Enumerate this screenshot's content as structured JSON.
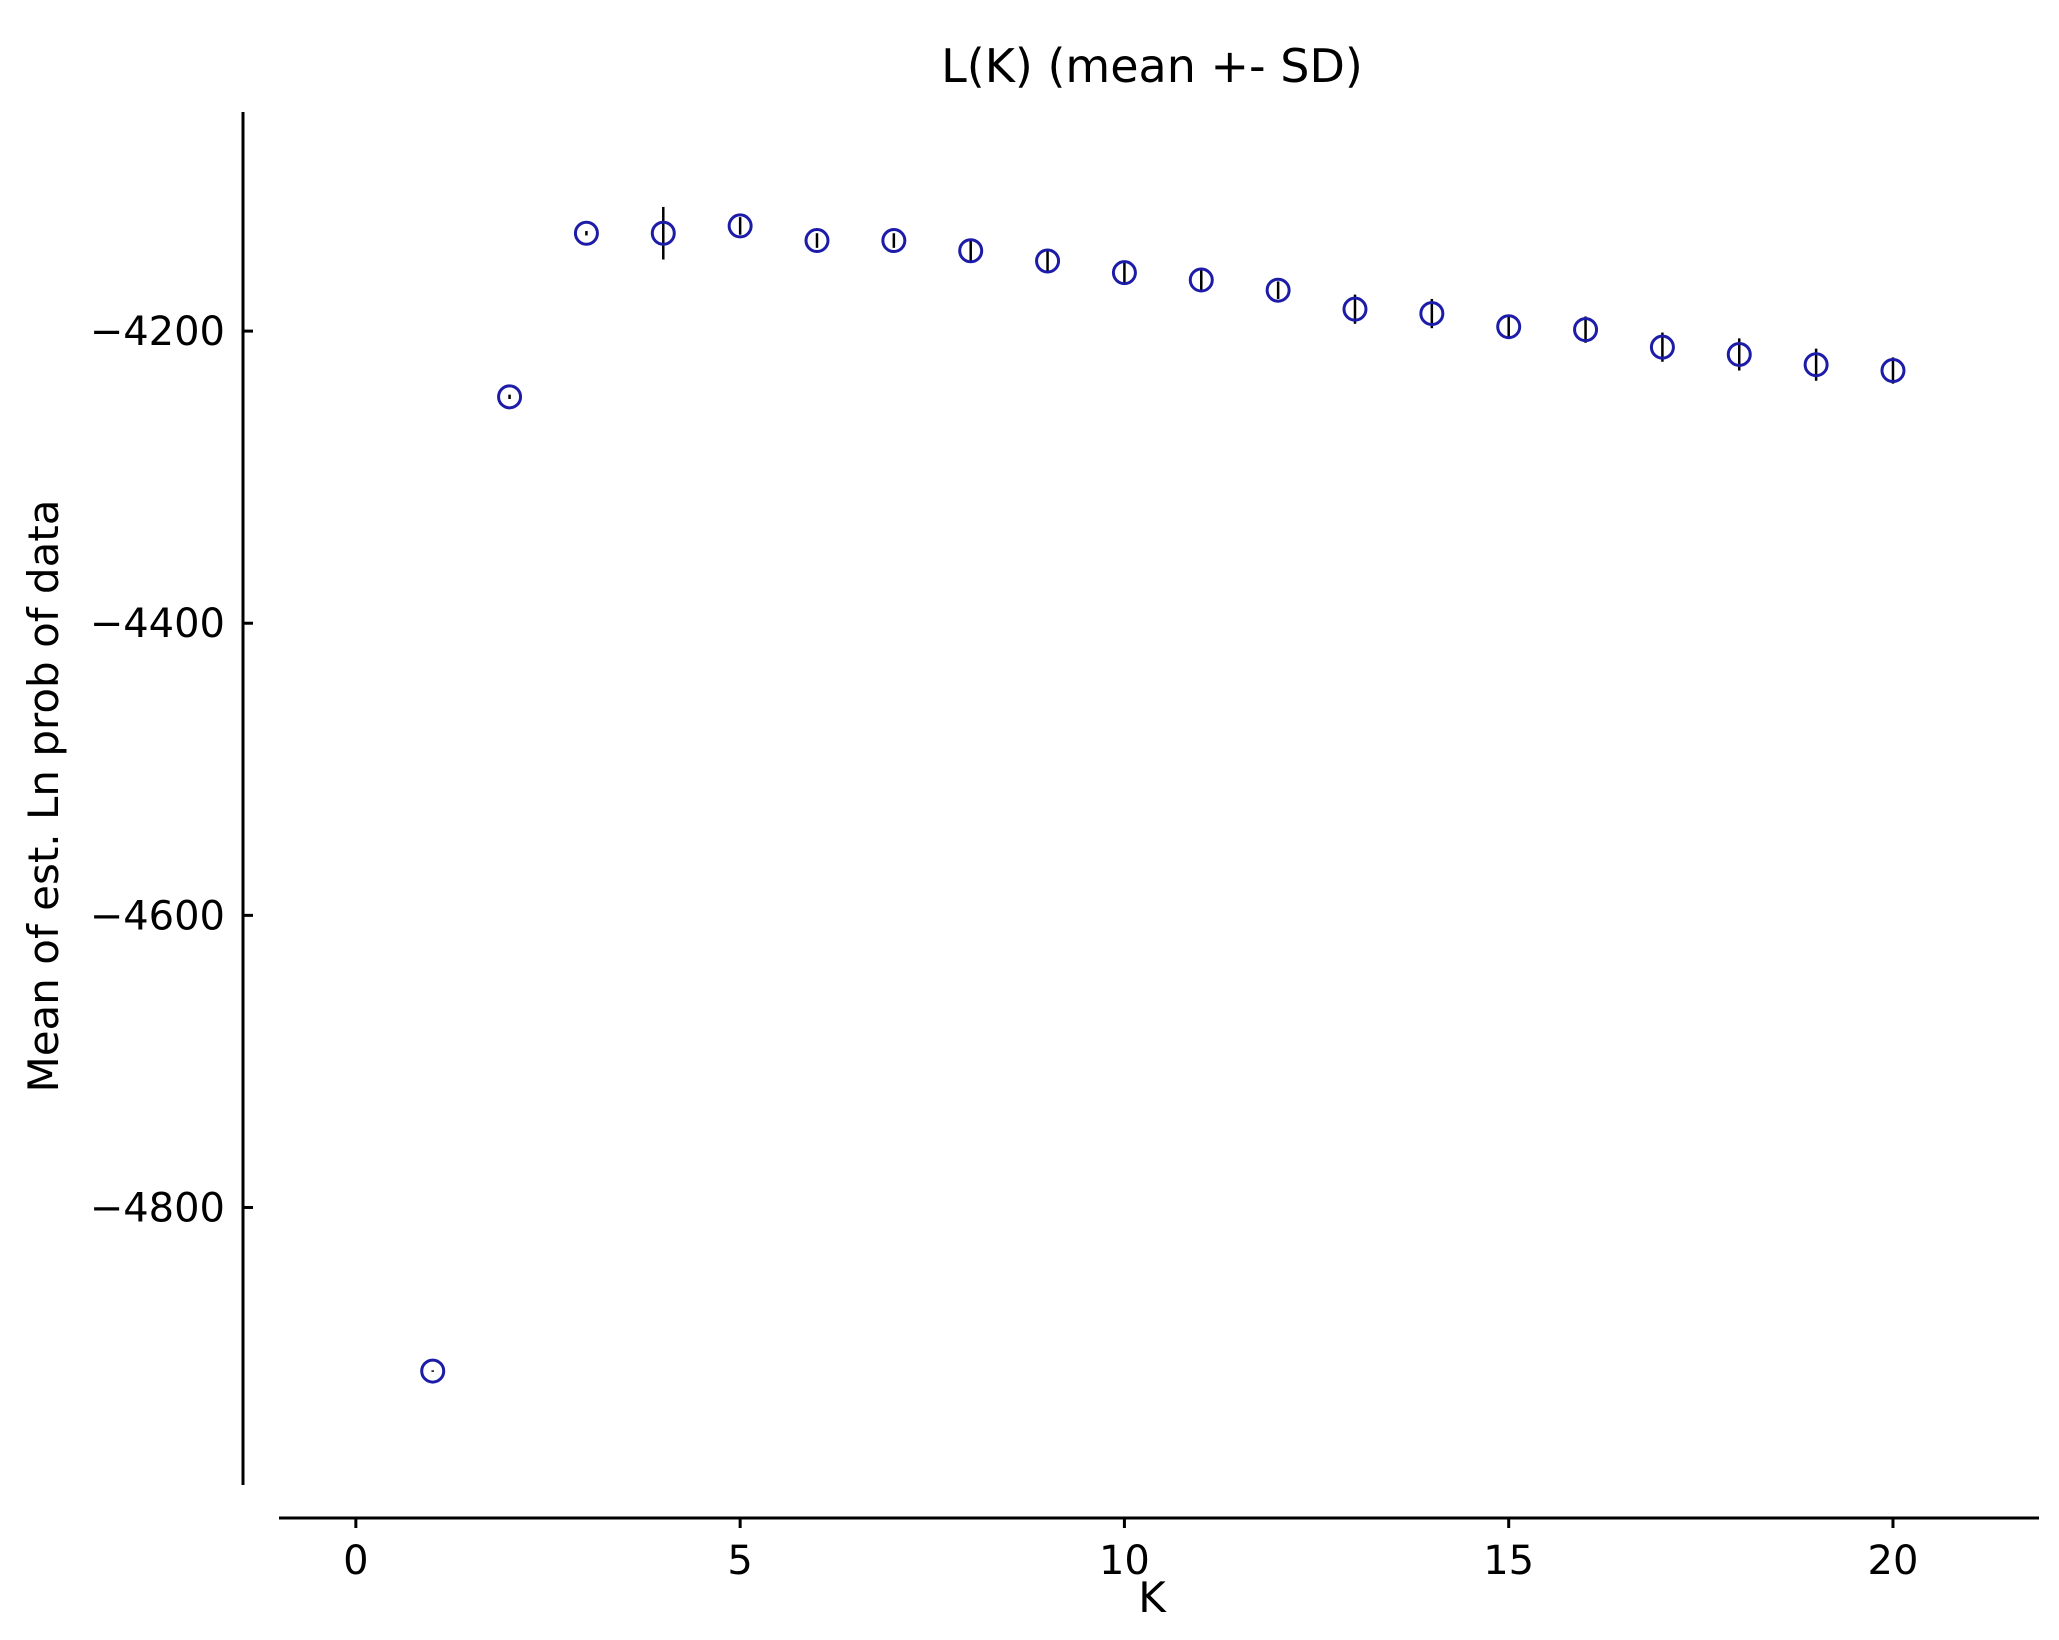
{
  "chart_data": {
    "type": "scatter",
    "title": "L(K) (mean +- SD)",
    "xlabel": "K",
    "ylabel": "Mean of est. Ln prob of data",
    "xlim": [
      -1,
      21.9
    ],
    "ylim": [
      -4990,
      -4050
    ],
    "xticks": [
      0,
      5,
      10,
      15,
      20
    ],
    "xtick_labels": [
      "0",
      "5",
      "10",
      "15",
      "20"
    ],
    "yticks": [
      -4200,
      -4400,
      -4600,
      -4800
    ],
    "ytick_labels": [
      "−4200",
      "−4400",
      "−4600",
      "−4800"
    ],
    "grid": false,
    "legend": "none",
    "marker": "open-circle",
    "marker_color": "#1c1ca8",
    "errorbar_color": "#000000",
    "series": [
      {
        "x": [
          1,
          2,
          3,
          4,
          5,
          6,
          7,
          8,
          9,
          10,
          11,
          12,
          13,
          14,
          15,
          16,
          17,
          18,
          19,
          20
        ],
        "y": [
          -4912,
          -4245,
          -4133,
          -4133,
          -4128,
          -4138,
          -4138,
          -4145,
          -4152,
          -4160,
          -4165,
          -4172,
          -4185,
          -4188,
          -4197,
          -4199,
          -4211,
          -4216,
          -4223,
          -4227
        ],
        "sd": [
          0.5,
          1.5,
          1.5,
          18,
          6,
          5,
          5,
          7,
          8,
          7,
          7,
          6,
          10,
          10,
          8,
          9,
          10,
          11,
          11,
          9
        ]
      }
    ]
  }
}
